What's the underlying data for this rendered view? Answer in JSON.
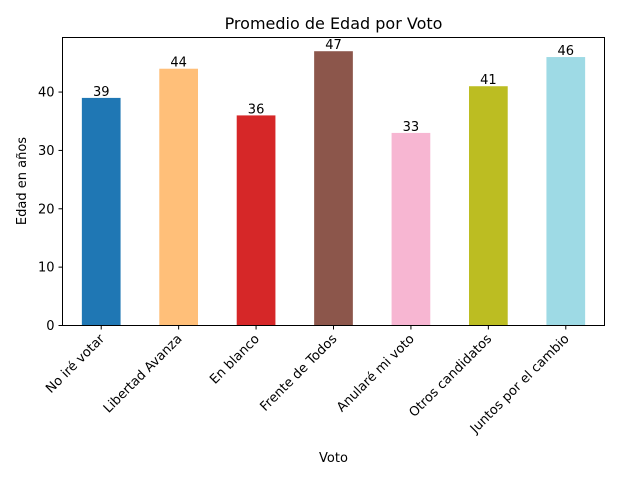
{
  "chart_data": {
    "type": "bar",
    "title": "Promedio de Edad por Voto",
    "xlabel": "Voto",
    "ylabel": "Edad en años",
    "categories": [
      "No iré votar",
      "Libertad Avanza",
      "En blanco",
      "Frente de Todos",
      "Anularé mi voto",
      "Otros candidatos",
      "Juntos por el cambio"
    ],
    "values": [
      39,
      44,
      36,
      47,
      33,
      41,
      46
    ],
    "colors": [
      "#1f77b4",
      "#ffbf79",
      "#d62728",
      "#8c564b",
      "#f7b6d2",
      "#bcbd22",
      "#9edae5"
    ],
    "ylim": [
      0,
      49.35
    ],
    "yticks": [
      0,
      10,
      20,
      30,
      40
    ],
    "grid": false,
    "legend": "none"
  }
}
